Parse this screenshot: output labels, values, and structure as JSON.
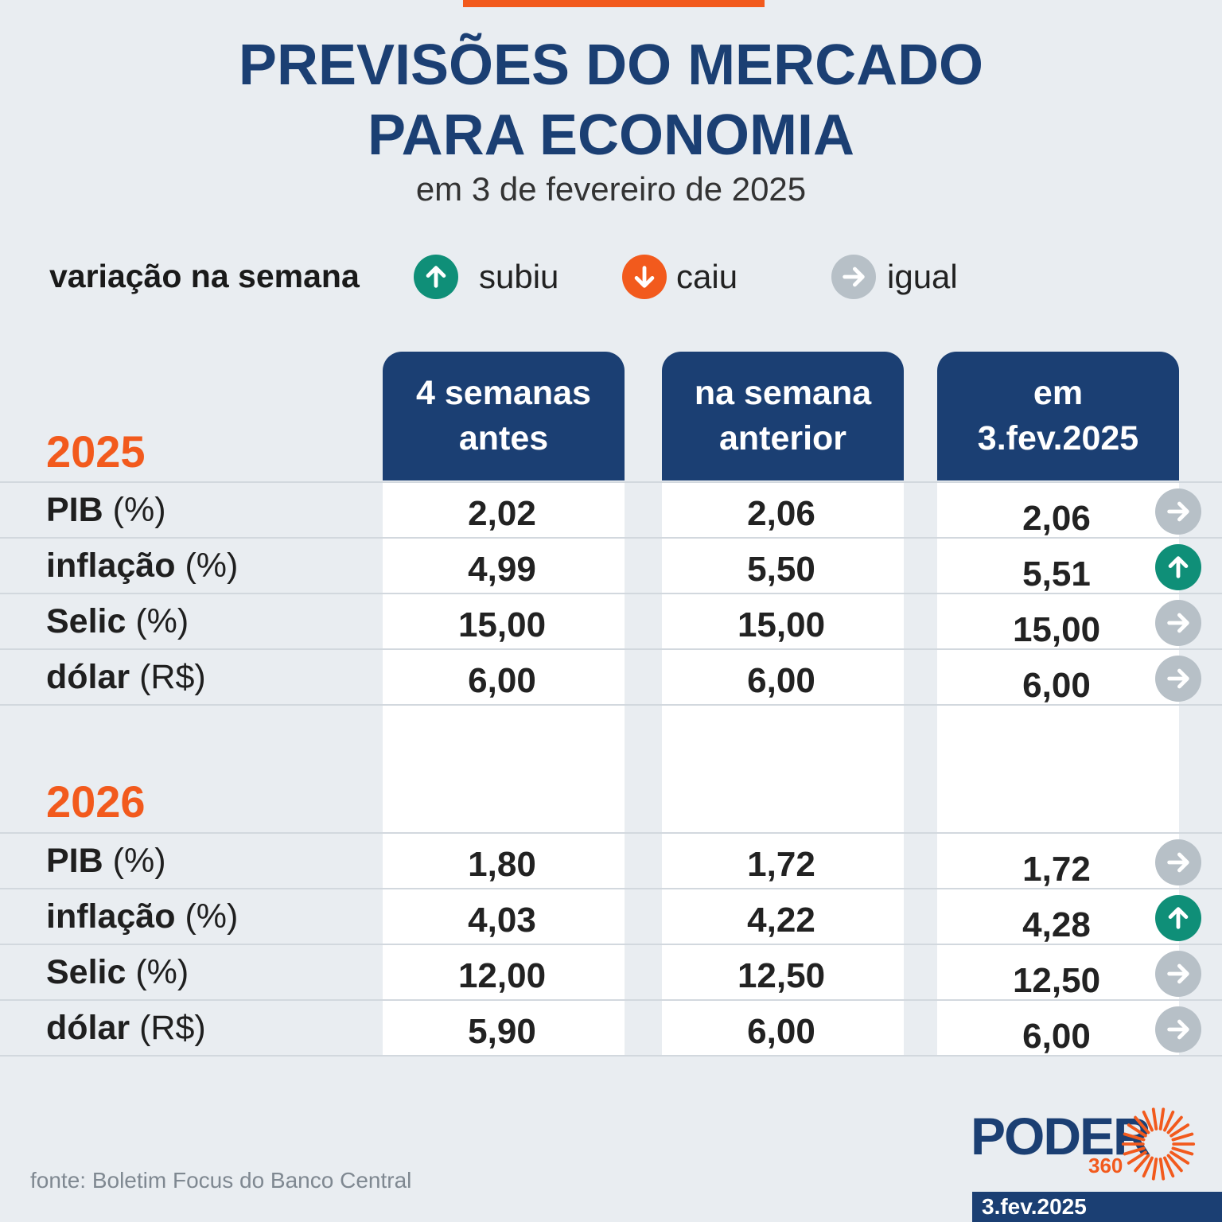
{
  "header": {
    "title_line1": "PREVISÕES DO MERCADO",
    "title_line2": "PARA ECONOMIA",
    "subtitle": "em 3 de fevereiro de 2025"
  },
  "legend": {
    "label": "variação na semana",
    "up": "subiu",
    "down": "caiu",
    "same": "igual"
  },
  "columns": [
    "4 semanas\nantes",
    "na semana\nanterior",
    "em\n3.fev.2025"
  ],
  "sections": [
    {
      "year": "2025",
      "rows": [
        {
          "label_bold": "PIB",
          "label_unit": " (%)",
          "values": [
            "2,02",
            "2,06",
            "2,06"
          ],
          "trend": "same"
        },
        {
          "label_bold": "inflação",
          "label_unit": " (%)",
          "values": [
            "4,99",
            "5,50",
            "5,51"
          ],
          "trend": "up"
        },
        {
          "label_bold": "Selic",
          "label_unit": " (%)",
          "values": [
            "15,00",
            "15,00",
            "15,00"
          ],
          "trend": "same"
        },
        {
          "label_bold": "dólar",
          "label_unit": " (R$)",
          "values": [
            "6,00",
            "6,00",
            "6,00"
          ],
          "trend": "same"
        }
      ]
    },
    {
      "year": "2026",
      "rows": [
        {
          "label_bold": "PIB",
          "label_unit": " (%)",
          "values": [
            "1,80",
            "1,72",
            "1,72"
          ],
          "trend": "same"
        },
        {
          "label_bold": "inflação",
          "label_unit": " (%)",
          "values": [
            "4,03",
            "4,22",
            "4,28"
          ],
          "trend": "up"
        },
        {
          "label_bold": "Selic",
          "label_unit": " (%)",
          "values": [
            "12,00",
            "12,50",
            "12,50"
          ],
          "trend": "same"
        },
        {
          "label_bold": "dólar",
          "label_unit": " (R$)",
          "values": [
            "5,90",
            "6,00",
            "6,00"
          ],
          "trend": "same"
        }
      ]
    }
  ],
  "source": "fonte: Boletim Focus do Banco Central",
  "logo": {
    "word": "PODER",
    "number": "360"
  },
  "date_tag": "3.fev.2025",
  "colors": {
    "navy": "#1b3f73",
    "orange": "#f25a1d",
    "teal": "#0f8f78",
    "grey": "#b7c0c7"
  }
}
